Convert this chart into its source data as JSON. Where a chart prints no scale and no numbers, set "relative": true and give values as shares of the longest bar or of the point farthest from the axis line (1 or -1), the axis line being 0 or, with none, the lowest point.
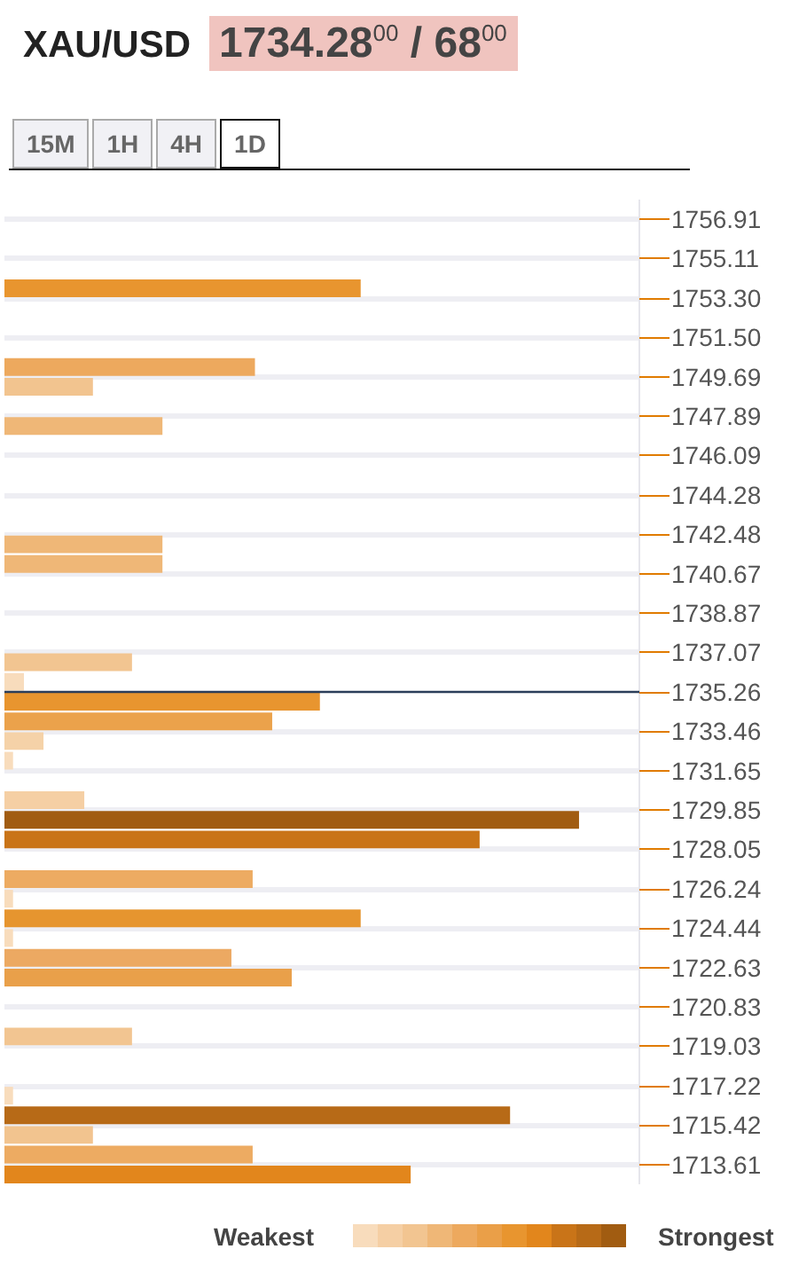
{
  "chart_data": [
    {
      "type": "bar",
      "title": "XAU/USD",
      "subtitle": "1734.28$^{00}$ / 68$^{00}$",
      "annotations": [
        "15M",
        "1H",
        "4H",
        "1D"
      ],
      "orientation": "horizontal",
      "relative": true,
      "x": [
        1753.75,
        1750.14,
        1749.24,
        1747.44,
        1742.02,
        1741.12,
        1736.62,
        1735.72,
        1734.81,
        1733.91,
        1733.01,
        1732.11,
        1730.3,
        1729.4,
        1728.5,
        1726.69,
        1725.79,
        1724.89,
        1723.99,
        1723.08,
        1722.18,
        1719.48,
        1716.77,
        1715.87,
        1714.97,
        1714.07,
        1713.16
      ],
      "values": [
        0.62,
        0.436,
        0.154,
        0.275,
        0.275,
        0.275,
        0.222,
        0.034,
        0.549,
        0.466,
        0.068,
        0.015,
        0.139,
        1,
        0.827,
        0.432,
        0.015,
        0.62,
        0.015,
        0.395,
        0.5,
        0.222,
        0.015,
        0.88,
        0.154,
        0.432,
        0.707
      ],
      "colors": [
        "#e8952f",
        "#eda95e",
        "#f2c48f",
        "#efb777",
        "#efb777",
        "#efb777",
        "#f2c591",
        "#f8dcbc",
        "#e8952f",
        "#eba24b",
        "#f5d2a8",
        "#f8dcbc",
        "#f5cfa4",
        "#a15c11",
        "#c97418",
        "#edab62",
        "#f8dcbc",
        "#e6952f",
        "#f8dcbc",
        "#eca962",
        "#e9a04a",
        "#f2c591",
        "#f8dcbc",
        "#b76a17",
        "#f2c48f",
        "#edab62",
        "#e2861c"
      ],
      "ylim": [
        1712.71,
        1757.81
      ],
      "yticks": [
        1756.91,
        1755.11,
        {
          "value": 1753.3,
          "label": "1753.30"
        },
        {
          "value": 1751.5,
          "label": "1751.50"
        },
        1749.69,
        1747.89,
        1746.09,
        1744.28,
        1742.48,
        1740.67,
        1738.87,
        1737.07,
        1733.46,
        1731.65,
        1729.85,
        1728.05,
        1726.24,
        1724.44,
        1722.63,
        1720.83,
        1719.03,
        1717.22,
        1715.42,
        1713.61
      ],
      "ref_lines": [
        {
          "axis": "y",
          "value": 1735.26,
          "label": "1735.26",
          "color": "#2b3e5a"
        }
      ],
      "grid": "y"
    },
    {
      "type": "other",
      "categories": [
        null,
        null,
        null,
        null,
        null,
        null,
        null,
        null,
        null,
        null,
        null
      ],
      "colors": [
        "#f8dcbc",
        "#f5cfa4",
        "#f2c591",
        "#efb777",
        "#eda95e",
        "#ea9f48",
        "#e8952f",
        "#e2861c",
        "#c97418",
        "#b76a17",
        "#a15c11"
      ],
      "annotations": [
        "Weakest",
        "Strongest"
      ]
    }
  ]
}
